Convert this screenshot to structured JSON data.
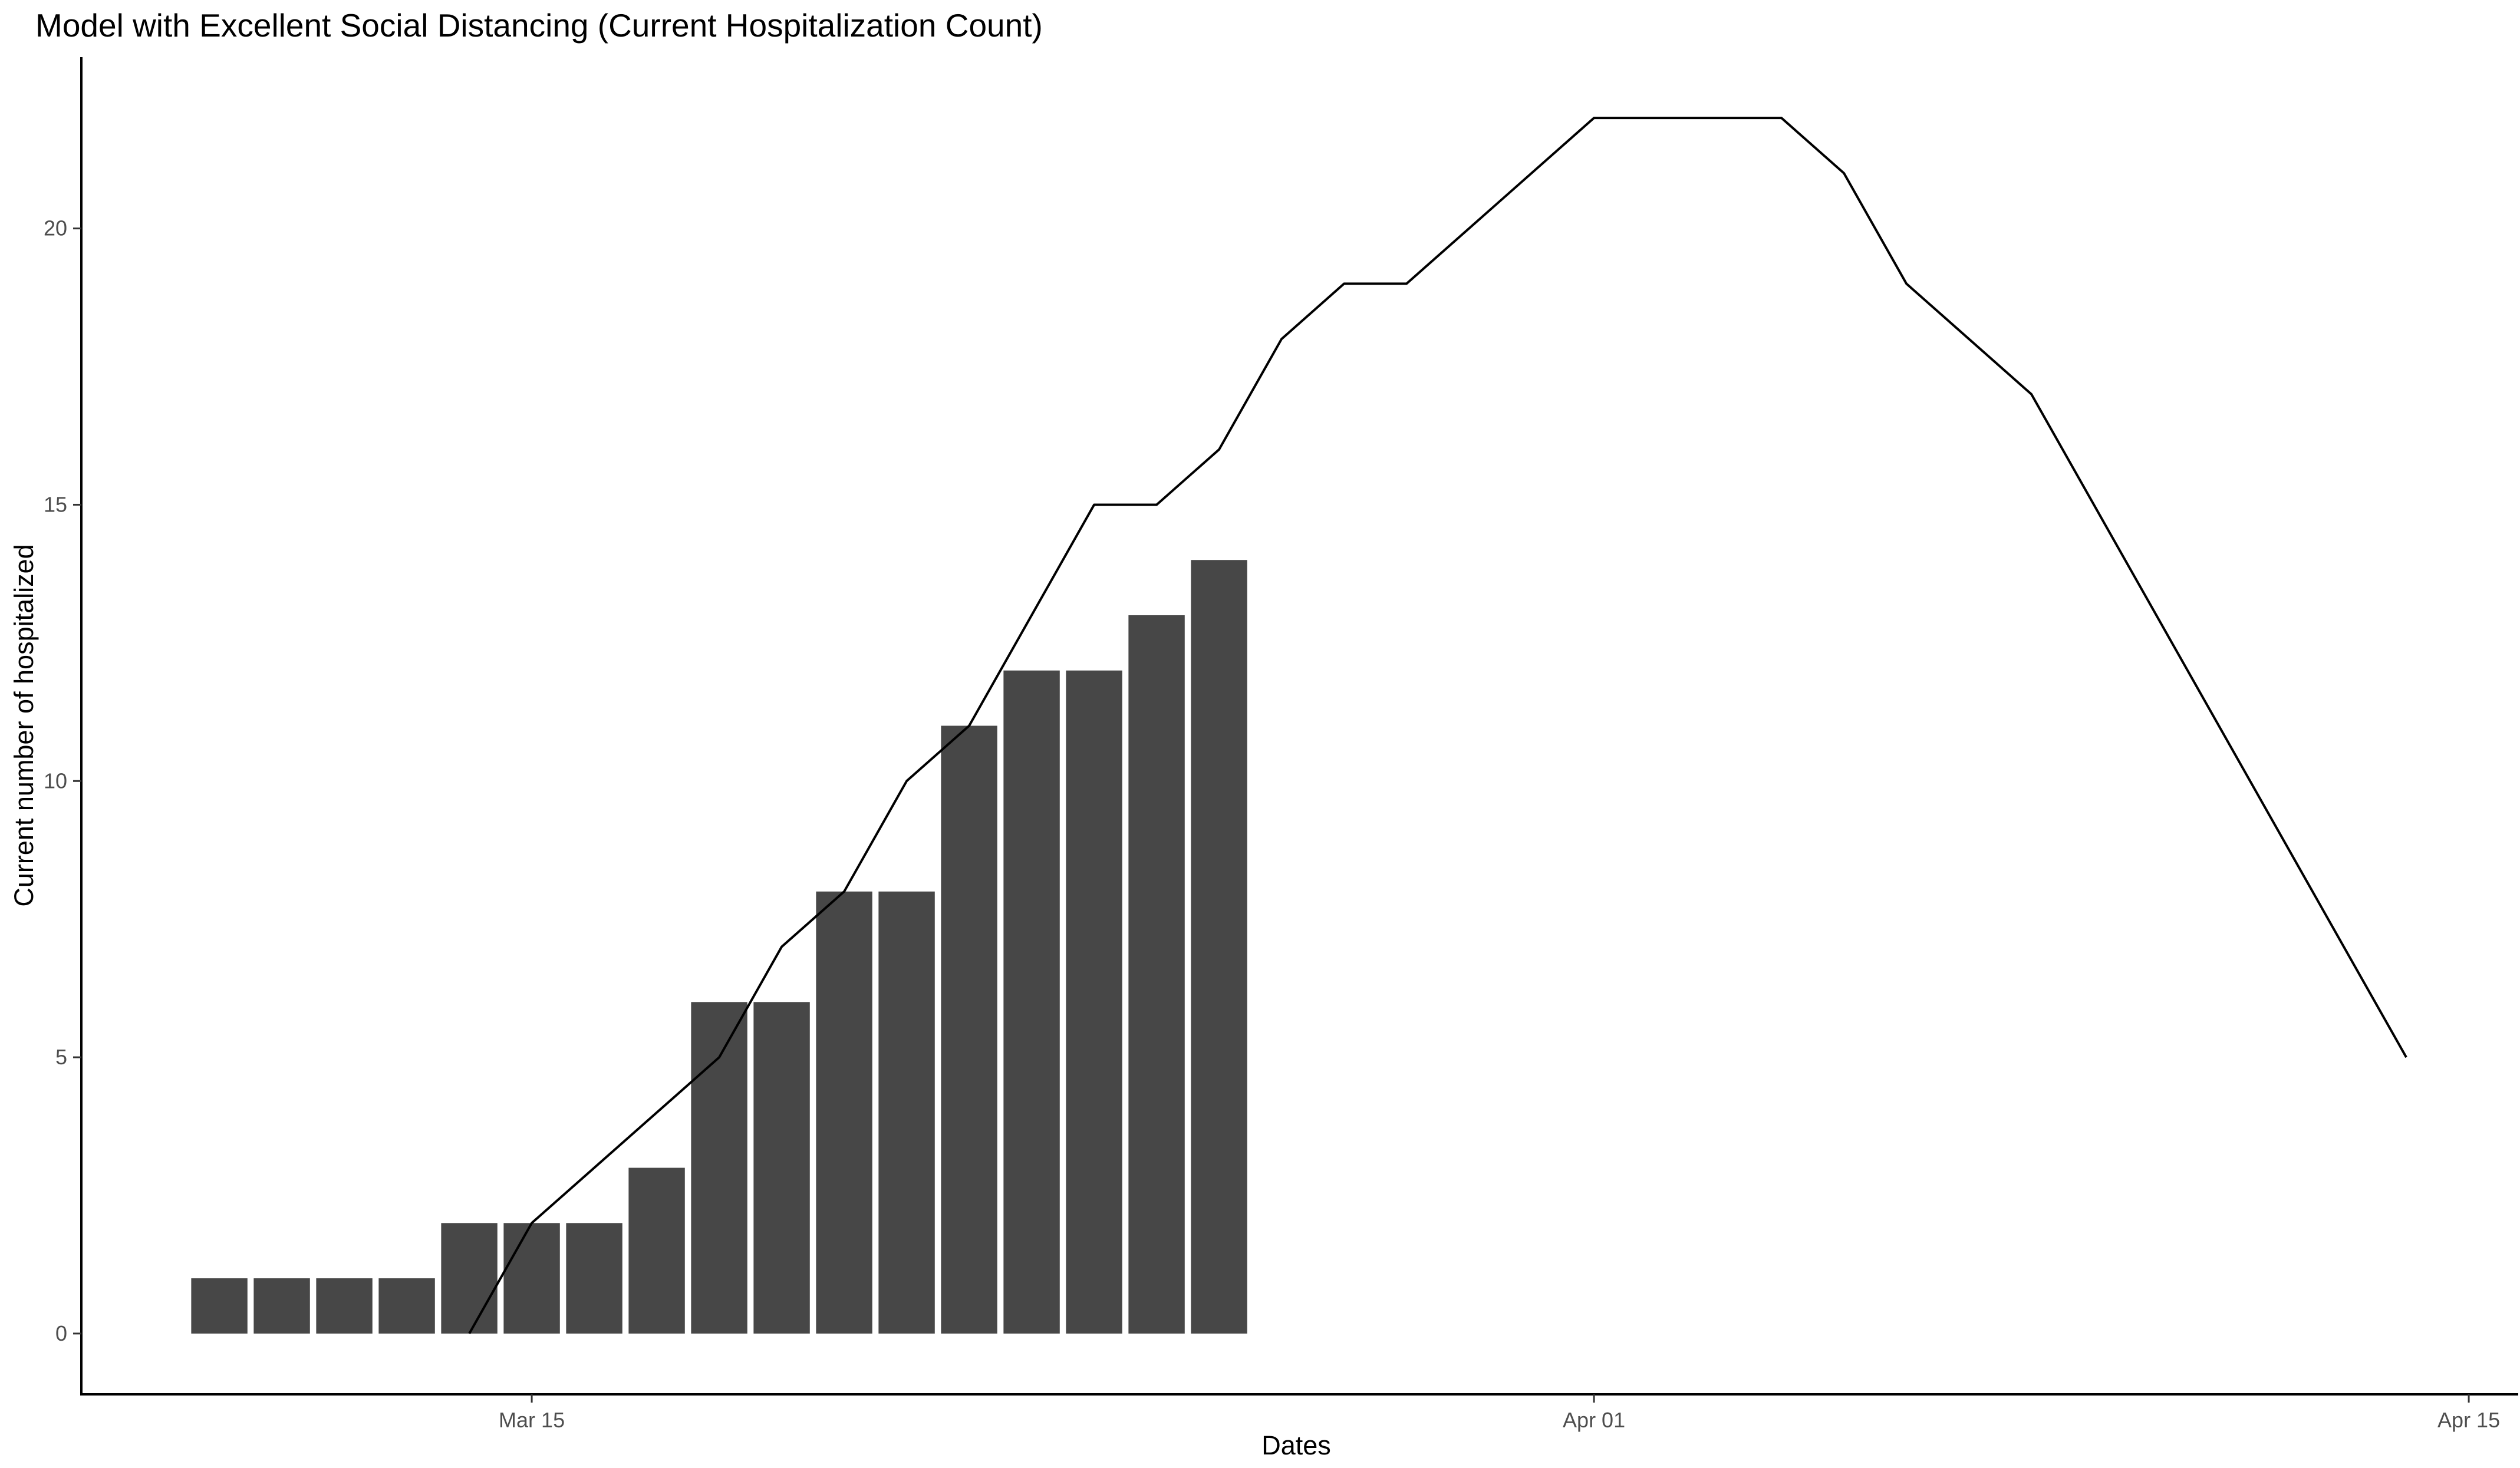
{
  "chart_data": {
    "type": "bar",
    "title": "Model with Excellent Social Distancing (Current Hospitalization Count)",
    "xlabel": "Dates",
    "ylabel": "Current number of hospitalized",
    "x_tick_labels": [
      {
        "date": "2020-03-15",
        "label": "Mar 15"
      },
      {
        "date": "2020-04-01",
        "label": "Apr 01"
      },
      {
        "date": "2020-04-15",
        "label": "Apr 15"
      }
    ],
    "y_ticks": [
      0,
      5,
      10,
      15,
      20
    ],
    "xlim": [
      "2020-03-07T19:00",
      "2020-04-15T19:00"
    ],
    "ylim": [
      -1.1,
      23.1
    ],
    "grid": false,
    "bar_color": "#474747",
    "line_color": "#000000",
    "bars": {
      "x": [
        "2020-03-10",
        "2020-03-11",
        "2020-03-12",
        "2020-03-13",
        "2020-03-14",
        "2020-03-15",
        "2020-03-16",
        "2020-03-17",
        "2020-03-18",
        "2020-03-19",
        "2020-03-20",
        "2020-03-21",
        "2020-03-22",
        "2020-03-23",
        "2020-03-24",
        "2020-03-25",
        "2020-03-26"
      ],
      "values": [
        1,
        1,
        1,
        1,
        2,
        2,
        2,
        3,
        6,
        6,
        8,
        8,
        11,
        12,
        12,
        13,
        14
      ]
    },
    "line": {
      "x": [
        "2020-03-14",
        "2020-03-15",
        "2020-03-18",
        "2020-03-19",
        "2020-03-20",
        "2020-03-21",
        "2020-03-22",
        "2020-03-24",
        "2020-03-25",
        "2020-03-26",
        "2020-03-27",
        "2020-03-28",
        "2020-03-29",
        "2020-04-01",
        "2020-04-04",
        "2020-04-05",
        "2020-04-06",
        "2020-04-08",
        "2020-04-14"
      ],
      "values": [
        0,
        2,
        5,
        7,
        8,
        10,
        11,
        15,
        15,
        16,
        18,
        19,
        19,
        22,
        22,
        21,
        19,
        17,
        5
      ]
    }
  }
}
